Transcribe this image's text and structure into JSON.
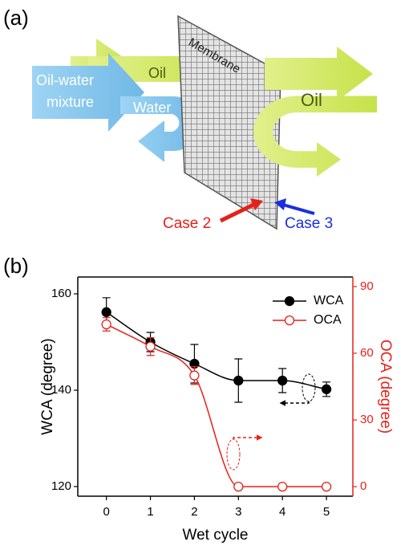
{
  "diagram": {
    "label": "(a)",
    "mixture_lines": [
      "Oil-water",
      "mixture"
    ],
    "oil_in": "Oil",
    "water": "Water",
    "membrane": "Membrane",
    "oil_out": "Oil",
    "case2": "Case 2",
    "case3": "Case 3"
  },
  "chart_data": {
    "type": "line",
    "label": "(b)",
    "x_label": "Wet cycle",
    "y_label": "WCA (degree)",
    "y2_label": "OCA (degree)",
    "x": [
      0,
      1,
      2,
      3,
      4,
      5
    ],
    "series": [
      {
        "name": "WCA",
        "color": "#000000",
        "filled": true,
        "values": [
          156.2,
          150,
          145.5,
          142,
          142,
          140.2
        ],
        "errors": [
          3,
          2,
          4,
          4.5,
          2.5,
          1.5
        ]
      },
      {
        "name": "OCA",
        "color": "#e8201a",
        "filled": false,
        "axis": "y2",
        "values": [
          73,
          63,
          50,
          0,
          0,
          0
        ],
        "errors": [
          3,
          4,
          4,
          0,
          0,
          0
        ]
      }
    ],
    "xlim": [
      -0.65,
      5.6
    ],
    "xticks": [
      0,
      1,
      2,
      3,
      4,
      5
    ],
    "ylim": [
      118,
      163.5
    ],
    "yticks": [
      120,
      140,
      160
    ],
    "y2lim": [
      -4.3,
      94.3
    ],
    "y2ticks": [
      0,
      30,
      60,
      90
    ],
    "legend": "upper right",
    "grid": false
  }
}
